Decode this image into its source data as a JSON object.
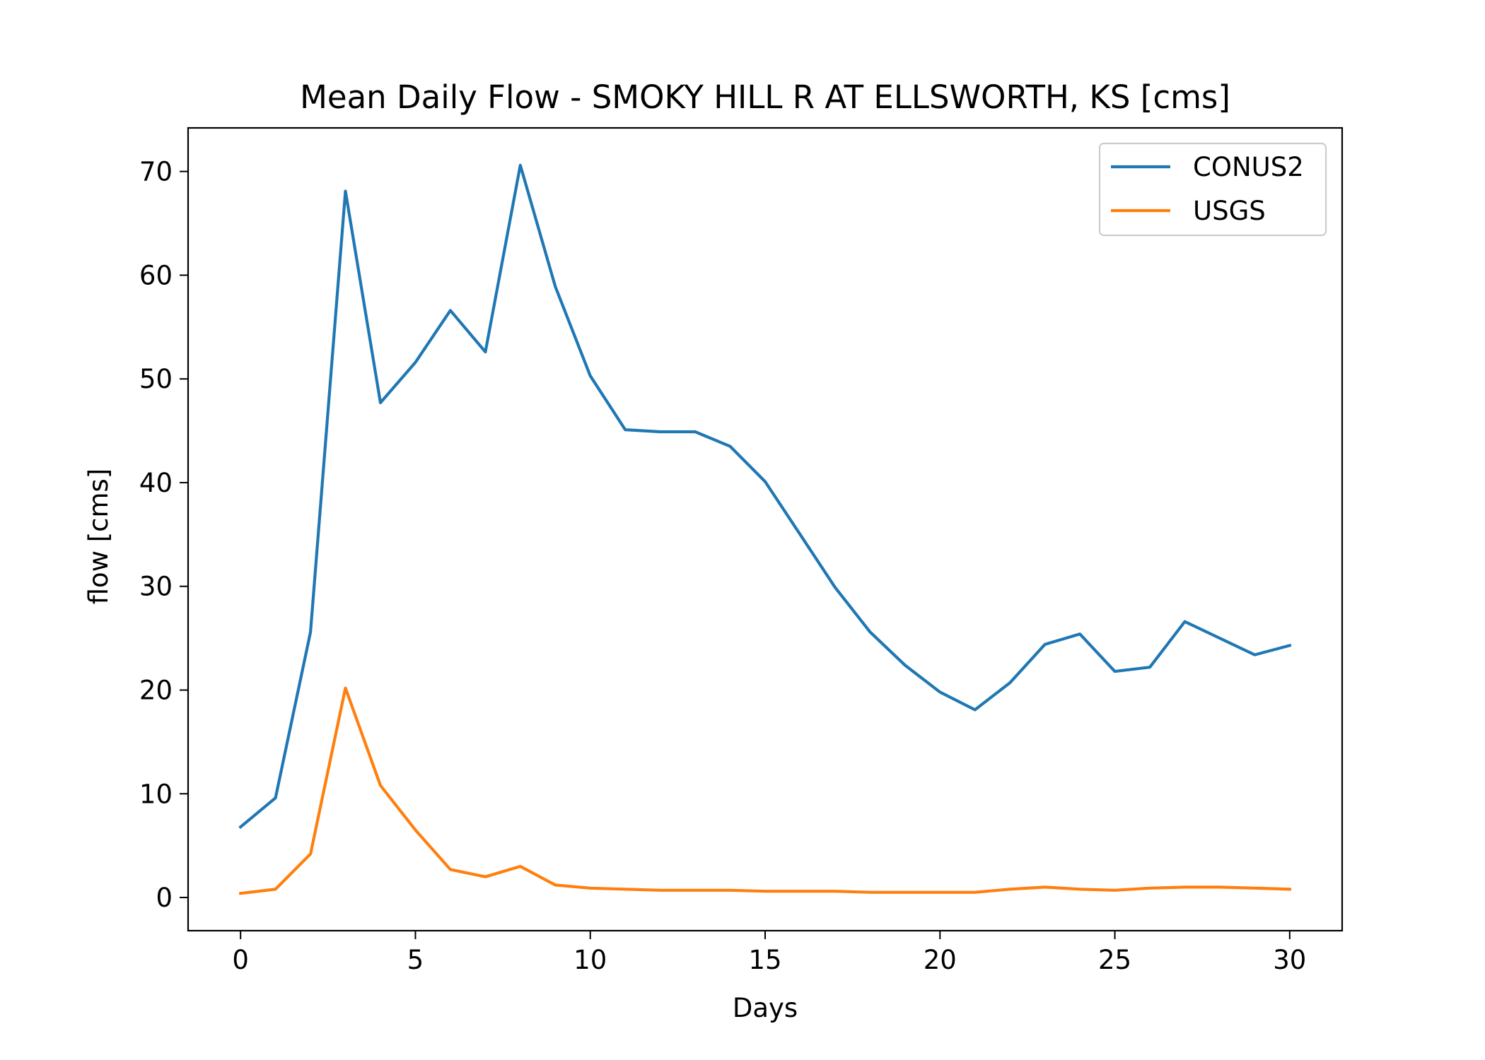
{
  "chart_data": {
    "type": "line",
    "title": "Mean Daily Flow - SMOKY HILL R AT ELLSWORTH, KS [cms]",
    "xlabel": "Days",
    "ylabel": "flow [cms]",
    "xlim": [
      -1.5,
      31.5
    ],
    "ylim": [
      -3.2,
      74.2
    ],
    "xticks": [
      0,
      5,
      10,
      15,
      20,
      25,
      30
    ],
    "yticks": [
      0,
      10,
      20,
      30,
      40,
      50,
      60,
      70
    ],
    "grid": false,
    "legend_position": "top-right",
    "x": [
      0,
      1,
      2,
      3,
      4,
      5,
      6,
      7,
      8,
      9,
      10,
      11,
      12,
      13,
      14,
      15,
      16,
      17,
      18,
      19,
      20,
      21,
      22,
      23,
      24,
      25,
      26,
      27,
      28,
      29,
      30
    ],
    "series": [
      {
        "name": "CONUS2",
        "color": "#1f77b4",
        "values": [
          6.8,
          9.6,
          25.6,
          68.1,
          47.7,
          51.6,
          56.6,
          52.6,
          70.6,
          58.9,
          50.3,
          45.1,
          44.9,
          44.9,
          43.5,
          40.1,
          35.0,
          29.9,
          25.6,
          22.4,
          19.8,
          18.1,
          20.7,
          24.4,
          25.4,
          21.8,
          22.2,
          26.6,
          25.0,
          23.4,
          24.3
        ]
      },
      {
        "name": "USGS",
        "color": "#ff7f0e",
        "values": [
          0.4,
          0.8,
          4.2,
          20.2,
          10.8,
          6.5,
          2.7,
          2.0,
          3.0,
          1.2,
          0.9,
          0.8,
          0.7,
          0.7,
          0.7,
          0.6,
          0.6,
          0.6,
          0.5,
          0.5,
          0.5,
          0.5,
          0.8,
          1.0,
          0.8,
          0.7,
          0.9,
          1.0,
          1.0,
          0.9,
          0.8
        ]
      }
    ]
  }
}
